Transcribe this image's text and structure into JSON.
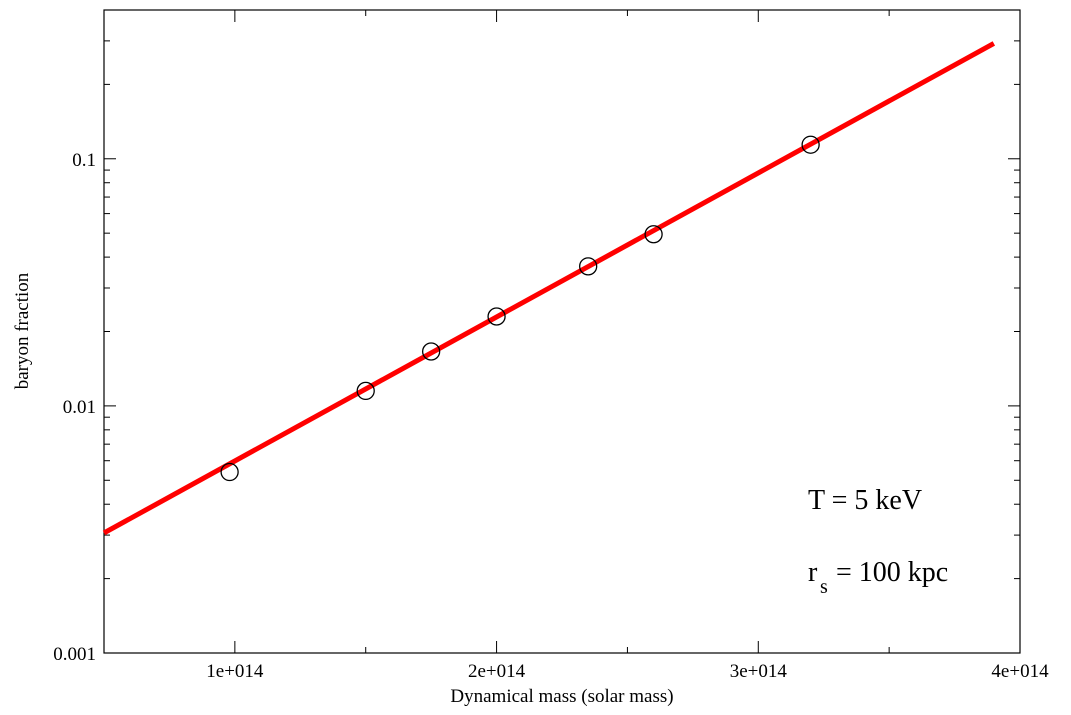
{
  "chart_data": {
    "type": "scatter",
    "xlabel": "Dynamical mass (solar mass)",
    "ylabel": "baryon fraction",
    "xlim": [
      50000000000000.0,
      400000000000000.0
    ],
    "ylim": [
      0.001,
      0.4
    ],
    "yscale": "log",
    "grid": false,
    "x_ticks": [
      {
        "value": 100000000000000.0,
        "label": "1e+014"
      },
      {
        "value": 200000000000000.0,
        "label": "2e+014"
      },
      {
        "value": 300000000000000.0,
        "label": "3e+014"
      },
      {
        "value": 400000000000000.0,
        "label": "4e+014"
      }
    ],
    "y_ticks": [
      {
        "value": 0.001,
        "label": "0.001"
      },
      {
        "value": 0.01,
        "label": "0.01"
      },
      {
        "value": 0.1,
        "label": "0.1"
      }
    ],
    "series": [
      {
        "kind": "points",
        "marker": "open-circle",
        "color": "#000000",
        "x": [
          98000000000000.0,
          150000000000000.0,
          175000000000000.0,
          200000000000000.0,
          235000000000000.0,
          260000000000000.0,
          320000000000000.0
        ],
        "y": [
          0.0054,
          0.0115,
          0.0166,
          0.023,
          0.0367,
          0.0495,
          0.114
        ]
      },
      {
        "kind": "line",
        "color": "#ff0000",
        "x": [
          50000000000000.0,
          390000000000000.0
        ],
        "y": [
          0.00306,
          0.293
        ]
      }
    ],
    "annotations": {
      "temperature": "T = 5 keV",
      "radius_main": "r",
      "radius_sub": "s",
      "radius_value": "= 100 kpc"
    }
  }
}
